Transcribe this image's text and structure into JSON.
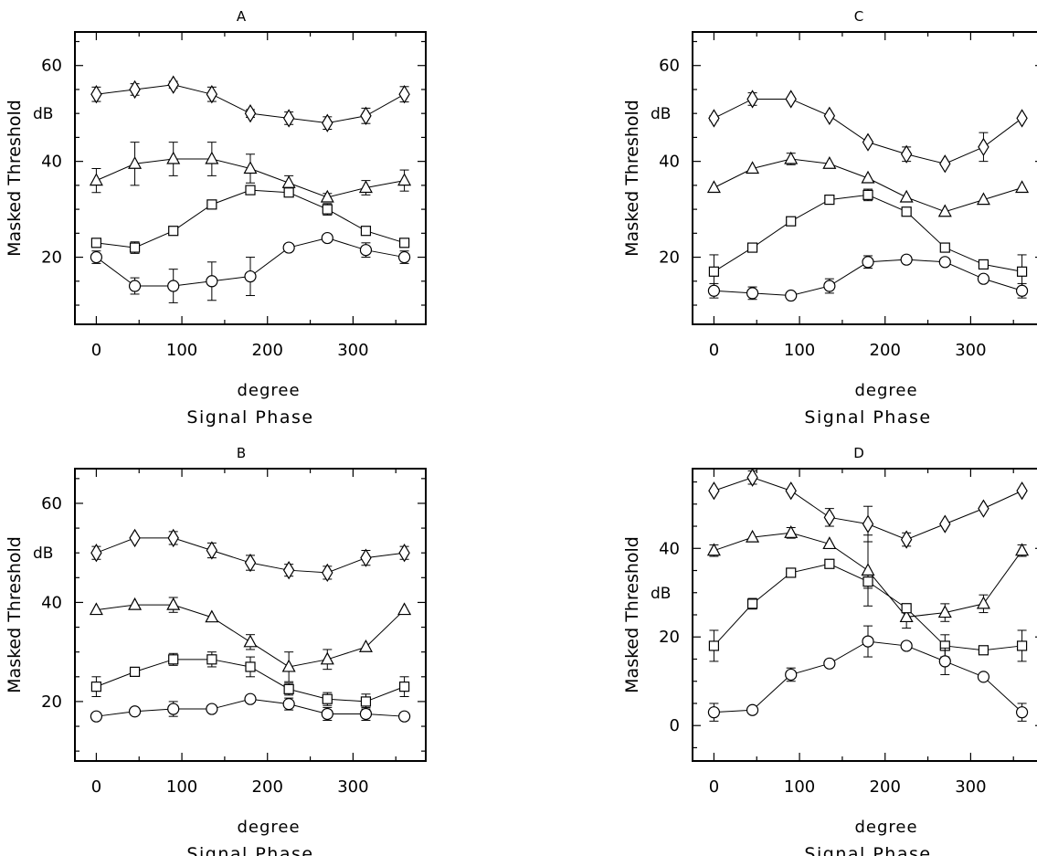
{
  "figure": {
    "x_unit_label": "degree",
    "x_label": "Signal Phase",
    "y_label": "Masked Threshold",
    "y_unit_label": "dB"
  },
  "chart_data": [
    {
      "type": "line",
      "panel": "A",
      "title": "A",
      "xlabel": "Signal Phase",
      "xunit": "degree",
      "ylabel": "Masked Threshold",
      "yunit": "dB",
      "xlim": [
        -25,
        385
      ],
      "ylim": [
        6,
        67
      ],
      "xticks": [
        0,
        100,
        200,
        300
      ],
      "yticks": [
        20,
        40,
        60
      ],
      "grid": false,
      "x": [
        0,
        45,
        90,
        135,
        180,
        225,
        270,
        315,
        360
      ],
      "series": [
        {
          "marker": "diamond",
          "values": [
            54.0,
            55.0,
            56.0,
            54.0,
            50.0,
            49.0,
            48.0,
            49.5,
            54.0
          ],
          "errors": [
            1.5,
            1.2,
            0.7,
            1.5,
            0.8,
            1.3,
            1.3,
            1.6,
            1.6
          ]
        },
        {
          "marker": "triangle",
          "values": [
            36.0,
            39.5,
            40.5,
            40.5,
            38.5,
            35.5,
            32.5,
            34.5,
            36.0
          ],
          "errors": [
            2.5,
            4.5,
            3.5,
            3.5,
            3.0,
            1.5,
            0.8,
            1.5,
            2.2
          ]
        },
        {
          "marker": "square",
          "values": [
            23.0,
            22.0,
            25.5,
            31.0,
            34.0,
            33.5,
            30.0,
            25.5,
            23.0
          ],
          "errors": [
            0.8,
            1.2,
            0.3,
            0.3,
            0.7,
            0.8,
            1.2,
            0.3,
            0.3
          ]
        },
        {
          "marker": "circle",
          "values": [
            20.0,
            14.0,
            14.0,
            15.0,
            16.0,
            22.0,
            24.0,
            21.5,
            20.0
          ],
          "errors": [
            1.3,
            1.7,
            3.5,
            4.0,
            4.0,
            0.3,
            0.3,
            1.5,
            1.3
          ]
        }
      ]
    },
    {
      "type": "line",
      "panel": "C",
      "title": "C",
      "xlabel": "Signal Phase",
      "xunit": "degree",
      "ylabel": "Masked Threshold",
      "yunit": "dB",
      "xlim": [
        -25,
        385
      ],
      "ylim": [
        6,
        67
      ],
      "xticks": [
        0,
        100,
        200,
        300
      ],
      "yticks": [
        20,
        40,
        60
      ],
      "grid": false,
      "x": [
        0,
        45,
        90,
        135,
        180,
        225,
        270,
        315,
        360
      ],
      "series": [
        {
          "marker": "diamond",
          "values": [
            49.0,
            53.0,
            53.0,
            49.5,
            44.0,
            41.5,
            39.5,
            43.0,
            49.0
          ],
          "errors": [
            0.5,
            1.3,
            0.3,
            0.3,
            0.3,
            1.5,
            0.3,
            3.0,
            0.3
          ]
        },
        {
          "marker": "triangle",
          "values": [
            34.5,
            38.5,
            40.5,
            39.5,
            36.5,
            32.5,
            29.5,
            32.0,
            34.5
          ],
          "errors": [
            0.3,
            0.3,
            1.2,
            0.3,
            0.3,
            0.3,
            0.3,
            0.3,
            0.3
          ]
        },
        {
          "marker": "square",
          "values": [
            17.0,
            22.0,
            27.5,
            32.0,
            33.0,
            29.5,
            22.0,
            18.5,
            17.0
          ],
          "errors": [
            3.5,
            0.3,
            0.3,
            0.3,
            1.2,
            0.3,
            0.3,
            0.3,
            3.5
          ]
        },
        {
          "marker": "circle",
          "values": [
            13.0,
            12.5,
            12.0,
            14.0,
            19.0,
            19.5,
            19.0,
            15.5,
            13.0
          ],
          "errors": [
            1.5,
            1.3,
            0.3,
            1.5,
            1.3,
            0.3,
            0.3,
            0.3,
            1.5
          ]
        }
      ]
    },
    {
      "type": "line",
      "panel": "B",
      "title": "B",
      "xlabel": "Signal Phase",
      "xunit": "degree",
      "ylabel": "Masked Threshold",
      "yunit": "dB",
      "xlim": [
        -25,
        385
      ],
      "ylim": [
        8,
        67
      ],
      "xticks": [
        0,
        100,
        200,
        300
      ],
      "yticks": [
        20,
        40,
        60
      ],
      "grid": false,
      "x": [
        0,
        45,
        90,
        135,
        180,
        225,
        270,
        315,
        360
      ],
      "series": [
        {
          "marker": "diamond",
          "values": [
            50.0,
            53.0,
            53.0,
            50.5,
            48.0,
            46.5,
            46.0,
            49.0,
            50.0
          ],
          "errors": [
            1.3,
            0.3,
            1.3,
            1.5,
            1.5,
            1.2,
            1.3,
            1.5,
            1.3
          ]
        },
        {
          "marker": "triangle",
          "values": [
            38.5,
            39.5,
            39.5,
            37.0,
            32.0,
            27.0,
            28.5,
            31.0,
            38.5
          ],
          "errors": [
            0.3,
            0.3,
            1.5,
            0.3,
            1.5,
            3.0,
            2.0,
            0.3,
            0.3
          ]
        },
        {
          "marker": "square",
          "values": [
            23.0,
            26.0,
            28.5,
            28.5,
            27.0,
            22.5,
            20.5,
            20.0,
            23.0
          ],
          "errors": [
            2.0,
            0.3,
            1.2,
            1.5,
            2.0,
            1.2,
            1.3,
            1.5,
            2.0
          ]
        },
        {
          "marker": "circle",
          "values": [
            17.0,
            18.0,
            18.5,
            18.5,
            20.5,
            19.5,
            17.5,
            17.5,
            17.0
          ],
          "errors": [
            0.3,
            0.3,
            1.5,
            0.3,
            0.3,
            1.2,
            1.3,
            1.3,
            0.3
          ]
        }
      ]
    },
    {
      "type": "line",
      "panel": "D",
      "title": "D",
      "xlabel": "Signal Phase",
      "xunit": "degree",
      "ylabel": "Masked Threshold",
      "yunit": "dB",
      "xlim": [
        -25,
        385
      ],
      "ylim": [
        -8,
        58
      ],
      "xticks": [
        0,
        100,
        200,
        300
      ],
      "yticks": [
        0,
        20,
        40
      ],
      "grid": false,
      "x": [
        0,
        45,
        90,
        135,
        180,
        225,
        270,
        315,
        360
      ],
      "series": [
        {
          "marker": "diamond",
          "values": [
            53.0,
            56.0,
            53.0,
            47.0,
            45.5,
            42.0,
            45.5,
            49.0,
            53.0
          ],
          "errors": [
            0.3,
            1.5,
            0.3,
            2.0,
            4.0,
            1.5,
            0.3,
            0.3,
            0.3
          ]
        },
        {
          "marker": "triangle",
          "values": [
            39.5,
            42.5,
            43.5,
            41.0,
            35.0,
            24.5,
            25.5,
            27.5,
            39.5
          ],
          "errors": [
            1.3,
            0.3,
            1.2,
            0.3,
            8.0,
            2.5,
            2.0,
            2.0,
            1.3
          ]
        },
        {
          "marker": "square",
          "values": [
            18.0,
            27.5,
            34.5,
            36.5,
            32.5,
            26.5,
            18.0,
            17.0,
            18.0
          ],
          "errors": [
            3.5,
            1.2,
            0.3,
            0.3,
            1.5,
            0.3,
            2.5,
            0.3,
            3.5
          ]
        },
        {
          "marker": "circle",
          "values": [
            3.0,
            3.5,
            11.5,
            14.0,
            19.0,
            18.0,
            14.5,
            11.0,
            3.0
          ],
          "errors": [
            2.0,
            0.3,
            1.5,
            0.3,
            3.5,
            0.3,
            3.0,
            0.3,
            2.0
          ]
        }
      ]
    }
  ]
}
